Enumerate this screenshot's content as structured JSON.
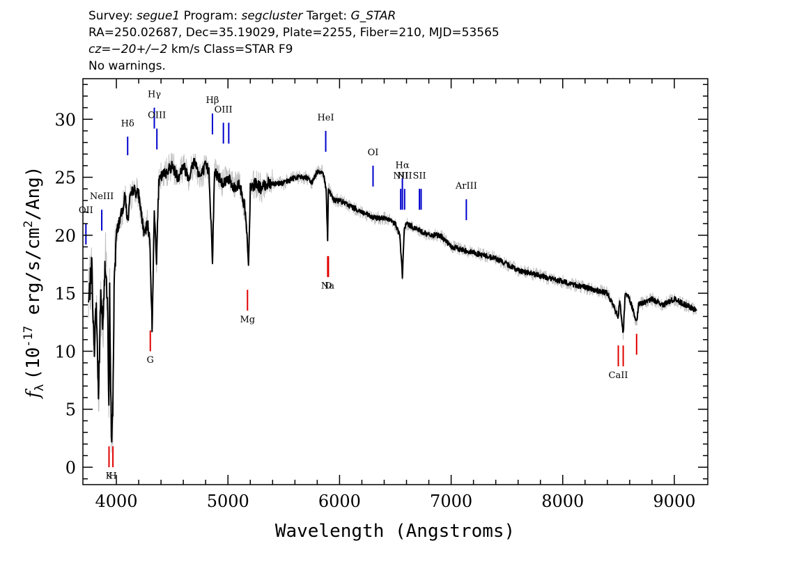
{
  "header": {
    "survey_label": "Survey:",
    "survey": "segue1",
    "program_label": "Program:",
    "program": "segcluster",
    "target_label": "Target:",
    "target": "G_STAR",
    "line2": "RA=250.02687, Dec=35.19029, Plate=2255, Fiber=210, MJD=53565",
    "cz_label": "cz",
    "cz_value": "=−20+/−2",
    "cz_unit": " km/s Class=STAR F9",
    "line4": "No warnings."
  },
  "chart_data": {
    "type": "line",
    "title": "",
    "xlabel": "Wavelength (Angstroms)",
    "ylabel_symbol": "f",
    "ylabel_sub": "λ",
    "ylabel_unit": "(10",
    "ylabel_exp": "-17",
    "ylabel_rest": " erg/s/cm",
    "ylabel_exp2": "2",
    "ylabel_end": "/Ang)",
    "xlim": [
      3700,
      9300
    ],
    "ylim": [
      -1.5,
      33.5
    ],
    "xticks": [
      4000,
      5000,
      6000,
      7000,
      8000,
      9000
    ],
    "yticks": [
      0,
      5,
      10,
      15,
      20,
      25,
      30
    ],
    "colors": {
      "flux": "#000000",
      "error": "#c0c0c0",
      "emission": "#0000cc",
      "absorption": "#e00000"
    },
    "series": [
      {
        "x": [
          3750,
          3780,
          3800,
          3820,
          3840,
          3860,
          3880,
          3900,
          3920,
          3933,
          3940,
          3955,
          3968,
          3980,
          4000,
          4020,
          4050,
          4080,
          4101,
          4120,
          4150,
          4200,
          4250,
          4280,
          4300,
          4320,
          4340,
          4360,
          4380,
          4400,
          4450,
          4500,
          4550,
          4600,
          4650,
          4700,
          4750,
          4800,
          4830,
          4861,
          4880,
          4920,
          4960,
          5000,
          5050,
          5100,
          5150,
          5170,
          5184,
          5200,
          5250,
          5300,
          5350,
          5400,
          5500,
          5600,
          5700,
          5750,
          5800,
          5850,
          5880,
          5893,
          5900,
          5950,
          6000,
          6100,
          6200,
          6300,
          6400,
          6500,
          6540,
          6563,
          6580,
          6600,
          6700,
          6800,
          6900,
          7000,
          7200,
          7400,
          7600,
          7800,
          8000,
          8200,
          8400,
          8498,
          8510,
          8542,
          8560,
          8600,
          8662,
          8680,
          8800,
          8900,
          9000,
          9100,
          9200
        ],
        "y": [
          14.0,
          17.5,
          10.0,
          14.0,
          6.0,
          15.0,
          12.0,
          18.0,
          14.0,
          4.5,
          15.0,
          2.5,
          4.0,
          16.0,
          20.0,
          21.0,
          22.0,
          23.5,
          21.0,
          23.0,
          24.0,
          23.5,
          20.0,
          21.0,
          19.5,
          12.0,
          22.0,
          18.0,
          24.5,
          25.0,
          25.5,
          26.0,
          25.0,
          26.0,
          25.0,
          26.5,
          25.0,
          26.0,
          25.5,
          18.0,
          25.5,
          25.0,
          24.5,
          25.0,
          24.0,
          24.5,
          22.5,
          20.0,
          17.0,
          24.0,
          24.5,
          24.0,
          24.5,
          24.5,
          24.5,
          25.0,
          25.0,
          24.5,
          25.5,
          25.5,
          24.0,
          19.5,
          24.0,
          23.0,
          23.0,
          22.5,
          22.0,
          21.5,
          21.5,
          21.0,
          20.0,
          16.5,
          20.5,
          21.0,
          20.5,
          20.0,
          20.0,
          19.0,
          18.5,
          18.0,
          17.0,
          16.5,
          16.0,
          15.5,
          15.0,
          13.0,
          14.5,
          11.5,
          15.0,
          14.5,
          12.5,
          14.0,
          14.5,
          14.0,
          14.5,
          14.0,
          13.5
        ]
      }
    ],
    "annotations": {
      "emission": [
        {
          "label": "OII",
          "x": 3727,
          "top": 21.0,
          "bottom": 19.2,
          "text_y": 21.9
        },
        {
          "label": "NeIII",
          "x": 3869,
          "top": 22.2,
          "bottom": 20.4,
          "text_y": 23.1
        },
        {
          "label": "Hδ",
          "x": 4101,
          "top": 28.5,
          "bottom": 26.9,
          "text_y": 29.4
        },
        {
          "label": "Hγ",
          "x": 4340,
          "top": 31.0,
          "bottom": 29.2,
          "text_y": 31.9
        },
        {
          "label": "OIII",
          "x": 4363,
          "top": 29.2,
          "bottom": 27.4,
          "text_y": 30.1
        },
        {
          "label": "Hβ",
          "x": 4861,
          "top": 30.5,
          "bottom": 28.7,
          "text_y": 31.4
        },
        {
          "label": "OIII",
          "x": 4959,
          "top": 29.7,
          "bottom": 27.9,
          "text_y": 30.6
        },
        {
          "label": "",
          "x": 5007,
          "top": 29.7,
          "bottom": 27.9,
          "text_y": 30.6
        },
        {
          "label": "HeI",
          "x": 5876,
          "top": 29.0,
          "bottom": 27.2,
          "text_y": 29.9
        },
        {
          "label": "OI",
          "x": 6300,
          "top": 26.0,
          "bottom": 24.2,
          "text_y": 26.9
        },
        {
          "label": "NII",
          "x": 6548,
          "top": 24.0,
          "bottom": 22.2,
          "text_y": 24.9
        },
        {
          "label": "Hα",
          "x": 6563,
          "top": 24.9,
          "bottom": 22.2,
          "text_y": 25.8
        },
        {
          "label": "NII",
          "x": 6583,
          "top": 24.0,
          "bottom": 22.2,
          "text_y": 24.9
        },
        {
          "label": "SII",
          "x": 6716,
          "top": 24.0,
          "bottom": 22.2,
          "text_y": 24.9
        },
        {
          "label": "",
          "x": 6731,
          "top": 24.0,
          "bottom": 22.2,
          "text_y": 24.9
        },
        {
          "label": "ArIII",
          "x": 7136,
          "top": 23.1,
          "bottom": 21.3,
          "text_y": 24.0
        }
      ],
      "absorption": [
        {
          "label": "K",
          "x": 3934,
          "top": 1.8,
          "bottom": 0.0,
          "text_y": -1.0
        },
        {
          "label": "H",
          "x": 3969,
          "top": 1.8,
          "bottom": 0.0,
          "text_y": -1.0
        },
        {
          "label": "G",
          "x": 4304,
          "top": 11.8,
          "bottom": 10.0,
          "text_y": 9.0
        },
        {
          "label": "Mg",
          "x": 5175,
          "top": 15.3,
          "bottom": 13.5,
          "text_y": 12.5
        },
        {
          "label": "Na",
          "x": 5894,
          "top": 18.2,
          "bottom": 16.4,
          "text_y": 15.4
        },
        {
          "label": "D",
          "x": 5900,
          "top": 18.2,
          "bottom": 16.4,
          "text_y": 15.4
        },
        {
          "label": "CaII",
          "x": 8498,
          "top": 10.5,
          "bottom": 8.7,
          "text_y": 7.7
        },
        {
          "label": "",
          "x": 8542,
          "top": 10.5,
          "bottom": 8.7,
          "text_y": 7.7
        },
        {
          "label": "",
          "x": 8662,
          "top": 11.5,
          "bottom": 9.7,
          "text_y": 8.7
        }
      ]
    }
  }
}
